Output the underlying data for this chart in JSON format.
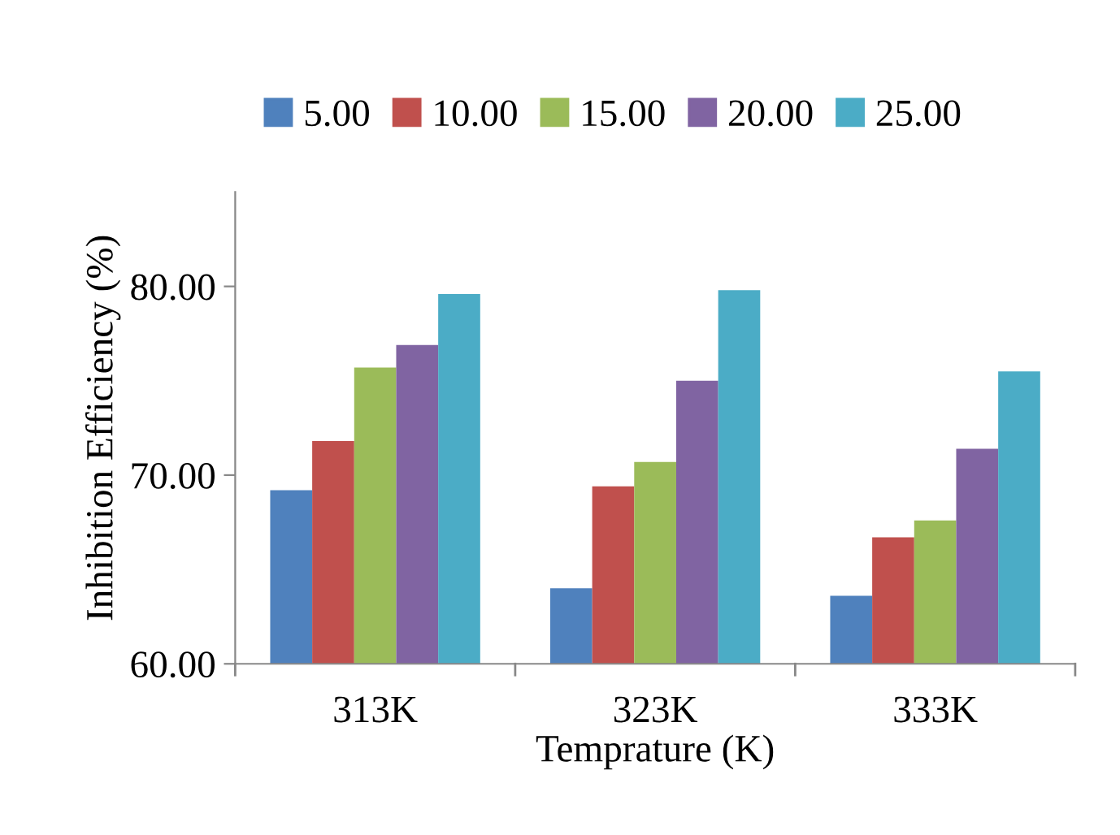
{
  "chart_data": {
    "type": "bar",
    "xlabel": "Temprature (K)",
    "ylabel": "Inhibition Efficiency (%)",
    "categories": [
      "313K",
      "323K",
      "333K"
    ],
    "series": [
      {
        "name": "5.00",
        "color": "#4f81bd",
        "values": [
          69.2,
          64.0,
          63.6
        ]
      },
      {
        "name": "10.00",
        "color": "#c0504d",
        "values": [
          71.8,
          69.4,
          66.7
        ]
      },
      {
        "name": "15.00",
        "color": "#9bbb59",
        "values": [
          75.7,
          70.7,
          67.6
        ]
      },
      {
        "name": "20.00",
        "color": "#8064a2",
        "values": [
          76.9,
          75.0,
          71.4
        ]
      },
      {
        "name": "25.00",
        "color": "#4bacc6",
        "values": [
          79.6,
          79.8,
          75.5
        ]
      }
    ],
    "ylim": [
      60,
      85
    ],
    "yticks": [
      {
        "value": 60,
        "label": "60.00"
      },
      {
        "value": 70,
        "label": "70.00"
      },
      {
        "value": 80,
        "label": "80.00"
      }
    ],
    "grid": false,
    "legend": "top"
  }
}
